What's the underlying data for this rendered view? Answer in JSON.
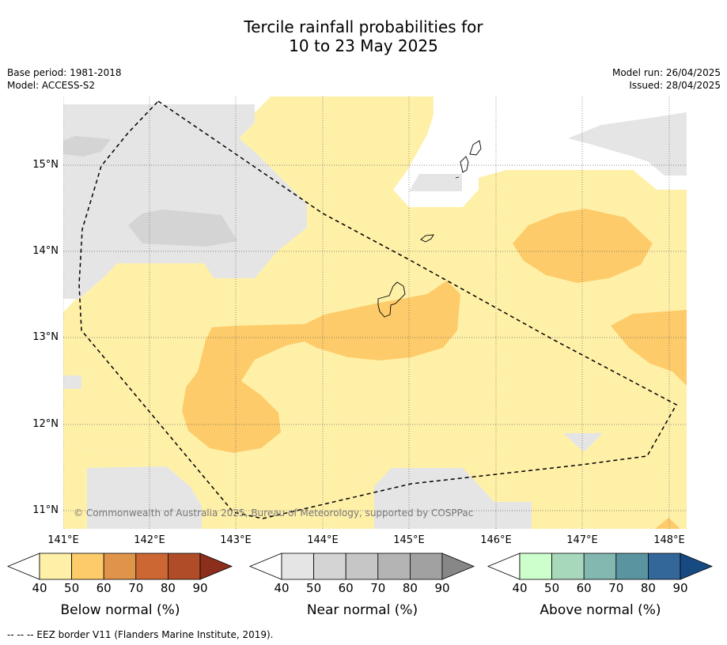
{
  "title_line1": "Tercile rainfall probabilities for",
  "title_line2": "10 to 23 May 2025",
  "meta_left": [
    "Base period: 1981-2018",
    "Model: ACCESS-S2"
  ],
  "meta_right": [
    "Model run: 26/04/2025",
    "Issued: 28/04/2025"
  ],
  "map": {
    "lat_ticks": [
      "15°N",
      "14°N",
      "13°N",
      "12°N",
      "11°N"
    ],
    "lon_ticks": [
      "141°E",
      "142°E",
      "143°E",
      "144°E",
      "145°E",
      "146°E",
      "147°E",
      "148°E"
    ],
    "copyright": "© Commonwealth of Australia 2025, Bureau of Meteorology, supported by COSPPac",
    "colors": {
      "below_40": "#fff0a8",
      "below_50": "#fdcb69",
      "near_40": "#e5e5e5",
      "near_50": "#d4d4d4"
    }
  },
  "colorbars": [
    {
      "title": "Below normal (%)",
      "labels": [
        "40",
        "50",
        "60",
        "70",
        "80",
        "90"
      ],
      "colors": [
        "#fff0a8",
        "#fdcb69",
        "#e0944a",
        "#cc6633",
        "#b14c28",
        "#8c2e1c"
      ]
    },
    {
      "title": "Near normal (%)",
      "labels": [
        "40",
        "50",
        "60",
        "70",
        "80",
        "90"
      ],
      "colors": [
        "#e5e5e5",
        "#d4d4d4",
        "#c6c6c6",
        "#b4b4b4",
        "#a1a1a1",
        "#878787"
      ]
    },
    {
      "title": "Above normal (%)",
      "labels": [
        "40",
        "50",
        "60",
        "70",
        "80",
        "90"
      ],
      "colors": [
        "#ccffcc",
        "#a8d8bc",
        "#82b8b0",
        "#5a94a0",
        "#336699",
        "#164a80"
      ]
    }
  ],
  "footnote": "--  --  -- EEZ border V11 (Flanders Marine Institute, 2019)."
}
